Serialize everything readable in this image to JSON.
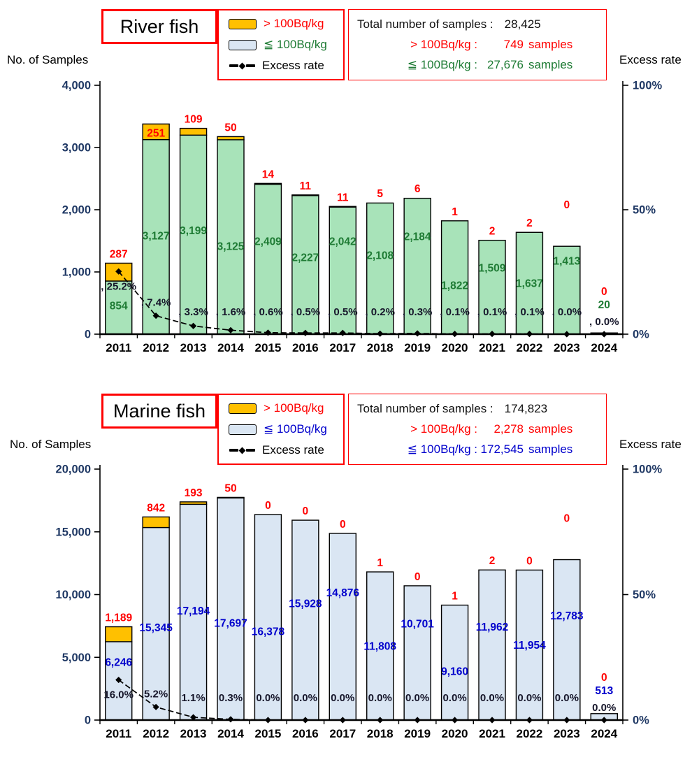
{
  "colors": {
    "red": "#FF0000",
    "box_border": "#FF0000",
    "orange_fill": "#FFC000",
    "swatch_blue_fill": "#DAE6F3",
    "river_bar_fill": "#A8E3B9",
    "marine_bar_fill": "#DAE6F3",
    "bar_stroke": "#000000",
    "river_value_text": "#1E7B34",
    "marine_value_text": "#0000CC",
    "axis_text": "#1F3864",
    "rate_text": "#17172B",
    "line_color": "#000000",
    "year_text": "#000000"
  },
  "charts": [
    {
      "title": "River fish",
      "axis_left_title": "No. of Samples",
      "axis_right_title": "Excess rate",
      "legend": {
        "over": "> 100Bq/kg",
        "under": "≦ 100Bq/kg",
        "rate": "Excess rate"
      },
      "summary": {
        "total_label": "Total number of samples :",
        "total_value": "28,425",
        "over_label": "> 100Bq/kg :",
        "over_value": "749",
        "over_unit": "samples",
        "under_label": "≦ 100Bq/kg :",
        "under_value": "27,676",
        "under_unit": "samples"
      }
    },
    {
      "title": "Marine fish",
      "axis_left_title": "No. of Samples",
      "axis_right_title": "Excess rate",
      "legend": {
        "over": "> 100Bq/kg",
        "under": "≦ 100Bq/kg",
        "rate": "Excess rate"
      },
      "summary": {
        "total_label": "Total number of samples :",
        "total_value": "174,823",
        "over_label": "> 100Bq/kg :",
        "over_value": "2,278",
        "over_unit": "samples",
        "under_label": "≦ 100Bq/kg :",
        "under_value": "172,545",
        "under_unit": "samples"
      }
    }
  ],
  "chart_data": [
    {
      "type": "bar",
      "subtype": "stacked-bar-with-line",
      "title": "River fish",
      "categories": [
        "2011",
        "2012",
        "2013",
        "2014",
        "2015",
        "2016",
        "2017",
        "2018",
        "2019",
        "2020",
        "2021",
        "2022",
        "2023",
        "2024"
      ],
      "series": [
        {
          "name": "> 100Bq/kg",
          "role": "over",
          "values": [
            287,
            251,
            109,
            50,
            14,
            11,
            11,
            5,
            6,
            1,
            2,
            2,
            0,
            0
          ],
          "labels": [
            "287",
            "251",
            "109",
            "50",
            "14",
            "11",
            "11",
            "5",
            "6",
            "1",
            "2",
            "2",
            "0",
            "0"
          ]
        },
        {
          "name": "≦ 100Bq/kg",
          "role": "under",
          "values": [
            854,
            3127,
            3199,
            3125,
            2409,
            2227,
            2042,
            2108,
            2184,
            1822,
            1509,
            1637,
            1413,
            20
          ],
          "labels": [
            "854",
            "3,127",
            "3,199",
            "3,125",
            "2,409",
            "2,227",
            "2,042",
            "2,108",
            "2,184",
            "1,822",
            "1,509",
            "1,637",
            "1,413",
            "20"
          ]
        },
        {
          "name": "Excess rate",
          "role": "rate",
          "type": "line",
          "values": [
            25.2,
            7.4,
            3.3,
            1.6,
            0.6,
            0.5,
            0.5,
            0.2,
            0.3,
            0.1,
            0.1,
            0.1,
            0.0,
            0.0
          ],
          "labels": [
            ", 25.2%",
            ", 7.4%",
            ", 3.3%",
            ", 1.6%",
            ", 0.6%",
            ", 0.5%",
            ", 0.5%",
            ", 0.2%",
            ", 0.3%",
            ", 0.1%",
            ", 0.1%",
            ", 0.1%",
            ", 0.0%",
            ", 0.0%"
          ]
        }
      ],
      "ylabel": "No. of Samples",
      "ylim": [
        0,
        4000
      ],
      "ytick_values": [
        0,
        1000,
        2000,
        3000,
        4000
      ],
      "ytick_labels": [
        "0",
        "1,000",
        "2,000",
        "3,000",
        "4,000"
      ],
      "y2label": "Excess rate",
      "y2lim": [
        0,
        100
      ],
      "y2tick_values": [
        0,
        50,
        100
      ],
      "y2tick_labels": [
        "0%",
        "50%",
        "100%"
      ],
      "grid": false,
      "legend_position": "top"
    },
    {
      "type": "bar",
      "subtype": "stacked-bar-with-line",
      "title": "Marine fish",
      "categories": [
        "2011",
        "2012",
        "2013",
        "2014",
        "2015",
        "2016",
        "2017",
        "2018",
        "2019",
        "2020",
        "2021",
        "2022",
        "2023",
        "2024"
      ],
      "series": [
        {
          "name": "> 100Bq/kg",
          "role": "over",
          "values": [
            1189,
            842,
            193,
            50,
            0,
            0,
            0,
            1,
            0,
            1,
            2,
            0,
            0,
            0
          ],
          "labels": [
            "1,189",
            "842",
            "193",
            "50",
            "0",
            "0",
            "0",
            "1",
            "0",
            "1",
            "2",
            "0",
            "0",
            "0"
          ]
        },
        {
          "name": "≦ 100Bq/kg",
          "role": "under",
          "values": [
            6246,
            15345,
            17194,
            17697,
            16378,
            15928,
            14876,
            11808,
            10701,
            9160,
            11962,
            11954,
            12783,
            513
          ],
          "labels": [
            "6,246",
            "15,345",
            "17,194",
            "17,697",
            "16,378",
            "15,928",
            "14,876",
            "11,808",
            "10,701",
            "9,160",
            "11,962",
            "11,954",
            "12,783",
            "513"
          ]
        },
        {
          "name": "Excess rate",
          "role": "rate",
          "type": "line",
          "values": [
            16.0,
            5.2,
            1.1,
            0.3,
            0.0,
            0.0,
            0.0,
            0.0,
            0.0,
            0.0,
            0.0,
            0.0,
            0.0,
            0.0
          ],
          "labels": [
            "16.0%",
            "5.2%",
            "1.1%",
            "0.3%",
            "0.0%",
            "0.0%",
            "0.0%",
            "0.0%",
            "0.0%",
            "0.0%",
            "0.0%",
            "0.0%",
            "0.0%",
            "0.0%"
          ]
        }
      ],
      "ylabel": "No. of Samples",
      "ylim": [
        0,
        20000
      ],
      "ytick_values": [
        0,
        5000,
        10000,
        15000,
        20000
      ],
      "ytick_labels": [
        "0",
        "5,000",
        "10,000",
        "15,000",
        "20,000"
      ],
      "y2label": "Excess rate",
      "y2lim": [
        0,
        100
      ],
      "y2tick_values": [
        0,
        50,
        100
      ],
      "y2tick_labels": [
        "0%",
        "50%",
        "100%"
      ],
      "grid": false,
      "legend_position": "top"
    }
  ]
}
